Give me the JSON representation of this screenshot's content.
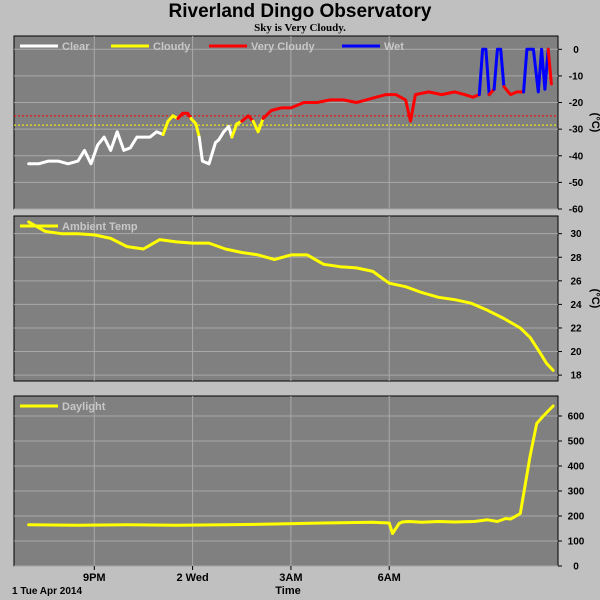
{
  "header": {
    "title": "Riverland Dingo Observatory",
    "subtitle": "Sky is Very Cloudy."
  },
  "chart_data": [
    {
      "type": "line",
      "name": "sky",
      "ylabel": "(°C)",
      "ylim": [
        -60,
        5
      ],
      "yticks": [
        0,
        -10,
        -20,
        -30,
        -40,
        -50,
        -60
      ],
      "grid": true,
      "legend_position": "top-left",
      "legend": [
        {
          "label": "Clear",
          "color": "#ffffff"
        },
        {
          "label": "Cloudy",
          "color": "#ffff00"
        },
        {
          "label": "Very Cloudy",
          "color": "#ff0000"
        },
        {
          "label": "Wet",
          "color": "#0000ff"
        }
      ],
      "thresholds": [
        {
          "value": -25,
          "color": "#ff0000"
        },
        {
          "value": -28.5,
          "color": "#ffff00"
        }
      ],
      "series": [
        {
          "color": "#ffffff",
          "x": [
            19.0,
            19.3,
            19.6,
            19.9,
            20.2,
            20.5,
            20.7,
            20.9,
            21.1,
            21.3,
            21.5,
            21.7,
            21.9,
            22.1,
            22.3,
            22.5,
            22.7,
            22.9,
            23.1
          ],
          "values": [
            -43,
            -43,
            -42,
            -42,
            -43,
            -42,
            -38,
            -43,
            -36,
            -33,
            -38,
            -31,
            -38,
            -37,
            -33,
            -33,
            -33,
            -31,
            -32
          ]
        },
        {
          "color": "#ffff00",
          "x": [
            23.1,
            23.25,
            23.4,
            23.55
          ],
          "values": [
            -32,
            -27,
            -25,
            -26
          ]
        },
        {
          "color": "#ff0000",
          "x": [
            23.55,
            23.7,
            23.85,
            23.95
          ],
          "values": [
            -26,
            -24,
            -24,
            -26
          ]
        },
        {
          "color": "#ffff00",
          "x": [
            23.95,
            24.1,
            24.2
          ],
          "values": [
            -26,
            -28,
            -33
          ]
        },
        {
          "color": "#ffffff",
          "x": [
            24.2,
            24.3,
            24.5,
            24.7,
            24.8,
            24.95,
            25.1,
            25.2
          ],
          "values": [
            -33,
            -42,
            -43,
            -35,
            -34,
            -31,
            -29,
            -33
          ]
        },
        {
          "color": "#ffff00",
          "x": [
            25.2,
            25.35,
            25.5
          ],
          "values": [
            -33,
            -28,
            -27
          ]
        },
        {
          "color": "#ff0000",
          "x": [
            25.5,
            25.7,
            25.85
          ],
          "values": [
            -27,
            -25,
            -27
          ]
        },
        {
          "color": "#ffff00",
          "x": [
            25.85,
            26.0,
            26.15
          ],
          "values": [
            -27,
            -31,
            -26
          ]
        },
        {
          "color": "#ff0000",
          "x": [
            26.15,
            26.4,
            26.7,
            27.0,
            27.4,
            27.8,
            28.2,
            28.6,
            29.0,
            29.3,
            29.6,
            29.9,
            30.2,
            30.5,
            30.65,
            30.8,
            31.2,
            31.6,
            32.0,
            32.3,
            32.55,
            32.75
          ],
          "values": [
            -26,
            -23,
            -22,
            -22,
            -20,
            -20,
            -19,
            -19,
            -20,
            -19,
            -18,
            -17,
            -17,
            -19,
            -27,
            -17,
            -16,
            -17,
            -16,
            -17,
            -18,
            -17
          ]
        },
        {
          "color": "#0000ff",
          "x": [
            32.75,
            32.85,
            32.95,
            33.05
          ],
          "values": [
            -17,
            0,
            0,
            -17
          ]
        },
        {
          "color": "#ff0000",
          "x": [
            33.05,
            33.2
          ],
          "values": [
            -17,
            -15
          ]
        },
        {
          "color": "#0000ff",
          "x": [
            33.2,
            33.3,
            33.4,
            33.5
          ],
          "values": [
            -15,
            0,
            0,
            -14
          ]
        },
        {
          "color": "#ff0000",
          "x": [
            33.5,
            33.7,
            33.9,
            34.1
          ],
          "values": [
            -14,
            -17,
            -16,
            -16
          ]
        },
        {
          "color": "#0000ff",
          "x": [
            34.1,
            34.2,
            34.4,
            34.55,
            34.65,
            34.75,
            34.85
          ],
          "values": [
            -16,
            0,
            0,
            -16,
            0,
            -15,
            0
          ]
        },
        {
          "color": "#ff0000",
          "x": [
            34.85,
            34.95
          ],
          "values": [
            0,
            -13
          ]
        }
      ]
    },
    {
      "type": "line",
      "name": "ambient",
      "ylabel": "(°C)",
      "ylim": [
        17.5,
        31.5
      ],
      "yticks": [
        30,
        28,
        26,
        24,
        22,
        20,
        18
      ],
      "grid": true,
      "legend_position": "top-left",
      "legend": [
        {
          "label": "Ambient Temp",
          "color": "#ffff00"
        }
      ],
      "series": [
        {
          "color": "#ffff00",
          "x": [
            19.0,
            19.5,
            20.0,
            20.5,
            21.0,
            21.5,
            22.0,
            22.5,
            23.0,
            23.5,
            24.0,
            24.5,
            25.0,
            25.5,
            26.0,
            26.5,
            27.0,
            27.5,
            28.0,
            28.5,
            29.0,
            29.5,
            30.0,
            30.5,
            31.0,
            31.5,
            32.0,
            32.5,
            33.0,
            33.5,
            34.0,
            34.3,
            34.6,
            34.8,
            35.0
          ],
          "values": [
            31.0,
            30.2,
            30.0,
            30.0,
            29.9,
            29.6,
            28.9,
            28.7,
            29.5,
            29.3,
            29.2,
            29.2,
            28.7,
            28.4,
            28.2,
            27.8,
            28.2,
            28.2,
            27.4,
            27.2,
            27.1,
            26.8,
            25.8,
            25.5,
            25.0,
            24.6,
            24.4,
            24.1,
            23.5,
            22.8,
            22.0,
            21.2,
            19.9,
            19.0,
            18.4
          ]
        }
      ]
    },
    {
      "type": "line",
      "name": "daylight",
      "ylim": [
        0,
        680
      ],
      "yticks": [
        600,
        500,
        400,
        300,
        200,
        100,
        0
      ],
      "grid": true,
      "legend_position": "top-left",
      "legend": [
        {
          "label": "Daylight",
          "color": "#ffff00"
        }
      ],
      "x_ticks": [
        {
          "x": 21,
          "label": "9PM"
        },
        {
          "x": 24,
          "label": "2 Wed"
        },
        {
          "x": 27,
          "label": "3AM"
        },
        {
          "x": 30,
          "label": "6AM"
        }
      ],
      "xlim": [
        18.55,
        35.15
      ],
      "date_label": "1 Tue Apr 2014",
      "xlabel": "Time",
      "series": [
        {
          "color": "#ffff00",
          "x": [
            19.0,
            20.5,
            22.0,
            23.5,
            25.0,
            26.5,
            28.0,
            29.5,
            30.0,
            30.1,
            30.3,
            30.4,
            30.6,
            31.0,
            31.5,
            32.0,
            32.6,
            33.0,
            33.3,
            33.55,
            33.7,
            33.8,
            34.0,
            34.3,
            34.5,
            34.7,
            34.85,
            35.0
          ],
          "values": [
            165,
            163,
            165,
            163,
            165,
            168,
            172,
            175,
            172,
            130,
            170,
            176,
            178,
            175,
            178,
            176,
            178,
            185,
            178,
            190,
            188,
            195,
            210,
            440,
            570,
            600,
            620,
            640
          ]
        }
      ]
    }
  ]
}
